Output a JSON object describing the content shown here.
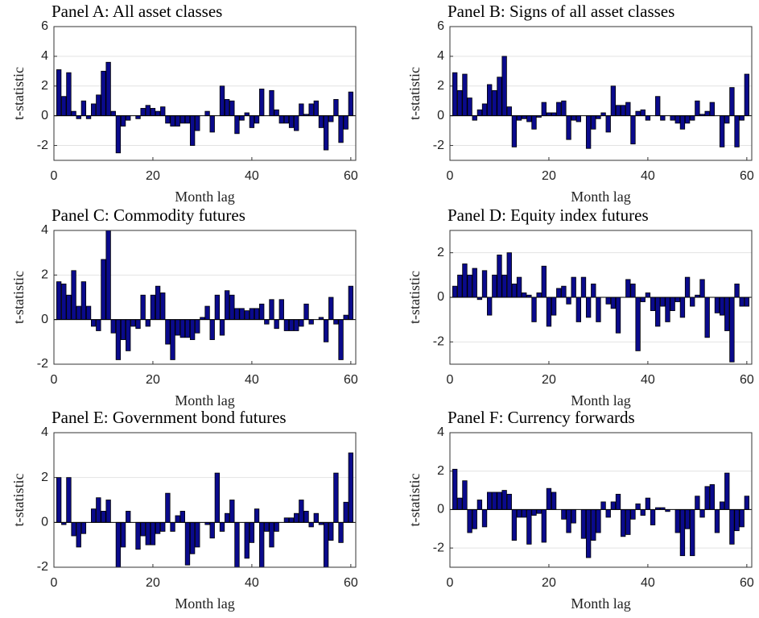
{
  "chart_data": [
    {
      "type": "bar",
      "title": "Panel A: All asset classes",
      "xlabel": "Month lag",
      "ylabel": "t-statistic",
      "color": "#0a0a8c",
      "grid": true,
      "x": [
        1,
        2,
        3,
        4,
        5,
        6,
        7,
        8,
        9,
        10,
        11,
        12,
        13,
        14,
        15,
        16,
        17,
        18,
        19,
        20,
        21,
        22,
        23,
        24,
        25,
        26,
        27,
        28,
        29,
        30,
        31,
        32,
        33,
        34,
        35,
        36,
        37,
        38,
        39,
        40,
        41,
        42,
        43,
        44,
        45,
        46,
        47,
        48,
        49,
        50,
        51,
        52,
        53,
        54,
        55,
        56,
        57,
        58,
        59,
        60
      ],
      "values": [
        3.1,
        1.3,
        2.9,
        0.3,
        -0.2,
        1.0,
        -0.2,
        0.8,
        1.4,
        3.0,
        3.6,
        0.3,
        -2.5,
        -0.7,
        -0.3,
        0.0,
        -0.2,
        0.5,
        0.7,
        0.5,
        0.3,
        0.6,
        -0.5,
        -0.7,
        -0.7,
        -0.5,
        -0.5,
        -2.0,
        -1.0,
        0.0,
        0.3,
        -1.1,
        0.0,
        2.0,
        1.1,
        1.0,
        -1.2,
        -0.3,
        0.2,
        -0.8,
        -0.5,
        1.8,
        0.0,
        1.7,
        0.4,
        -0.5,
        -0.5,
        -0.8,
        -1.0,
        0.8,
        0.1,
        0.8,
        1.0,
        -0.8,
        -2.3,
        -0.4,
        1.1,
        -1.8,
        -0.9,
        1.6
      ],
      "xlim": [
        0,
        61
      ],
      "xticks": [
        0,
        20,
        40,
        60
      ],
      "ylim": [
        -3,
        6
      ],
      "yticks": [
        -2,
        0,
        2,
        4,
        6
      ]
    },
    {
      "type": "bar",
      "title": "Panel B: Signs of all asset classes",
      "xlabel": "Month lag",
      "ylabel": "t-statistic",
      "color": "#0a0a8c",
      "grid": true,
      "x": [
        1,
        2,
        3,
        4,
        5,
        6,
        7,
        8,
        9,
        10,
        11,
        12,
        13,
        14,
        15,
        16,
        17,
        18,
        19,
        20,
        21,
        22,
        23,
        24,
        25,
        26,
        27,
        28,
        29,
        30,
        31,
        32,
        33,
        34,
        35,
        36,
        37,
        38,
        39,
        40,
        41,
        42,
        43,
        44,
        45,
        46,
        47,
        48,
        49,
        50,
        51,
        52,
        53,
        54,
        55,
        56,
        57,
        58,
        59,
        60
      ],
      "values": [
        2.9,
        1.7,
        2.8,
        1.2,
        -0.3,
        0.4,
        0.8,
        2.1,
        1.7,
        2.6,
        4.0,
        0.6,
        -2.1,
        -0.3,
        -0.2,
        -0.4,
        -0.9,
        -0.1,
        0.9,
        0.2,
        0.2,
        0.9,
        1.0,
        -1.6,
        -0.3,
        -0.4,
        0.0,
        -2.2,
        -0.9,
        -0.2,
        0.2,
        -1.1,
        2.0,
        0.7,
        0.7,
        0.9,
        -1.9,
        0.3,
        0.4,
        -0.3,
        0.0,
        1.3,
        -0.3,
        0.0,
        -0.3,
        -0.5,
        -0.9,
        -0.5,
        -0.3,
        1.0,
        0.1,
        0.3,
        0.9,
        0.0,
        -2.1,
        -0.5,
        1.9,
        -2.1,
        -0.3,
        2.8
      ],
      "xlim": [
        0,
        61
      ],
      "xticks": [
        0,
        20,
        40,
        60
      ],
      "ylim": [
        -3,
        6
      ],
      "yticks": [
        -2,
        0,
        2,
        4,
        6
      ]
    },
    {
      "type": "bar",
      "title": "Panel C: Commodity futures",
      "xlabel": "Month lag",
      "ylabel": "t-statistic",
      "color": "#0a0a8c",
      "grid": true,
      "x": [
        1,
        2,
        3,
        4,
        5,
        6,
        7,
        8,
        9,
        10,
        11,
        12,
        13,
        14,
        15,
        16,
        17,
        18,
        19,
        20,
        21,
        22,
        23,
        24,
        25,
        26,
        27,
        28,
        29,
        30,
        31,
        32,
        33,
        34,
        35,
        36,
        37,
        38,
        39,
        40,
        41,
        42,
        43,
        44,
        45,
        46,
        47,
        48,
        49,
        50,
        51,
        52,
        53,
        54,
        55,
        56,
        57,
        58,
        59,
        60
      ],
      "values": [
        1.7,
        1.6,
        1.1,
        2.2,
        0.6,
        1.7,
        0.6,
        -0.3,
        -0.5,
        2.7,
        4.0,
        -0.6,
        -1.8,
        -0.9,
        -1.4,
        -0.3,
        -0.4,
        1.1,
        -0.3,
        1.1,
        1.5,
        1.2,
        -1.1,
        -1.8,
        -0.7,
        -0.8,
        -0.8,
        -0.9,
        -0.6,
        0.1,
        0.6,
        -0.9,
        1.1,
        -0.7,
        1.3,
        1.1,
        0.5,
        0.5,
        0.4,
        0.5,
        0.5,
        0.7,
        -0.2,
        0.9,
        -0.4,
        0.9,
        -0.5,
        -0.5,
        -0.5,
        -0.3,
        0.7,
        -0.2,
        0.0,
        0.1,
        -1.0,
        1.0,
        -0.2,
        -1.8,
        0.2,
        1.5
      ],
      "xlim": [
        0,
        61
      ],
      "xticks": [
        0,
        20,
        40,
        60
      ],
      "ylim": [
        -2,
        4
      ],
      "yticks": [
        -2,
        0,
        2,
        4
      ]
    },
    {
      "type": "bar",
      "title": "Panel D: Equity index futures",
      "xlabel": "Month lag",
      "ylabel": "t-statistic",
      "color": "#0a0a8c",
      "grid": true,
      "x": [
        1,
        2,
        3,
        4,
        5,
        6,
        7,
        8,
        9,
        10,
        11,
        12,
        13,
        14,
        15,
        16,
        17,
        18,
        19,
        20,
        21,
        22,
        23,
        24,
        25,
        26,
        27,
        28,
        29,
        30,
        31,
        32,
        33,
        34,
        35,
        36,
        37,
        38,
        39,
        40,
        41,
        42,
        43,
        44,
        45,
        46,
        47,
        48,
        49,
        50,
        51,
        52,
        53,
        54,
        55,
        56,
        57,
        58,
        59,
        60
      ],
      "values": [
        0.5,
        1.0,
        1.5,
        1.0,
        1.3,
        -0.1,
        1.2,
        -0.8,
        1.0,
        1.9,
        1.0,
        2.0,
        0.6,
        0.9,
        0.2,
        0.1,
        -1.1,
        0.2,
        1.4,
        -1.3,
        -0.8,
        0.4,
        0.5,
        -0.3,
        0.9,
        -1.1,
        0.9,
        -0.9,
        0.6,
        -1.1,
        0.0,
        -0.3,
        -0.5,
        -1.6,
        0.0,
        0.8,
        0.6,
        -2.4,
        -0.2,
        0.2,
        -0.6,
        -1.3,
        -0.4,
        -1.1,
        -0.6,
        -0.2,
        -0.9,
        0.9,
        -0.4,
        0.1,
        0.8,
        -1.8,
        0.0,
        -0.7,
        -0.8,
        -1.5,
        -2.9,
        0.6,
        -0.4,
        -0.4
      ],
      "xlim": [
        0,
        61
      ],
      "xticks": [
        0,
        20,
        40,
        60
      ],
      "ylim": [
        -3,
        3
      ],
      "yticks": [
        -2,
        0,
        2
      ]
    },
    {
      "type": "bar",
      "title": "Panel E: Government bond futures",
      "xlabel": "Month lag",
      "ylabel": "t-statistic",
      "color": "#0a0a8c",
      "grid": true,
      "x": [
        1,
        2,
        3,
        4,
        5,
        6,
        7,
        8,
        9,
        10,
        11,
        12,
        13,
        14,
        15,
        16,
        17,
        18,
        19,
        20,
        21,
        22,
        23,
        24,
        25,
        26,
        27,
        28,
        29,
        30,
        31,
        32,
        33,
        34,
        35,
        36,
        37,
        38,
        39,
        40,
        41,
        42,
        43,
        44,
        45,
        46,
        47,
        48,
        49,
        50,
        51,
        52,
        53,
        54,
        55,
        56,
        57,
        58,
        59,
        60
      ],
      "values": [
        2.0,
        -0.1,
        2.0,
        -0.6,
        -1.1,
        -0.5,
        0.0,
        0.6,
        1.1,
        0.5,
        1.0,
        0.0,
        -2.0,
        -1.1,
        0.5,
        0.0,
        -1.2,
        -0.6,
        -1.0,
        -1.0,
        -0.5,
        -0.4,
        1.3,
        -0.4,
        0.3,
        0.5,
        -1.9,
        -1.4,
        -1.1,
        0.0,
        -0.1,
        -0.7,
        2.2,
        -0.4,
        0.4,
        1.0,
        -2.0,
        0.0,
        -1.6,
        -0.9,
        0.6,
        -2.0,
        -0.4,
        -1.1,
        -0.4,
        0.0,
        0.2,
        0.2,
        0.4,
        1.0,
        0.5,
        -0.2,
        0.4,
        -0.1,
        -2.0,
        -0.8,
        2.2,
        -0.9,
        0.9,
        3.1
      ],
      "xlim": [
        0,
        61
      ],
      "xticks": [
        0,
        20,
        40,
        60
      ],
      "ylim": [
        -2,
        4
      ],
      "yticks": [
        -2,
        0,
        2,
        4
      ]
    },
    {
      "type": "bar",
      "title": "Panel F: Currency forwards",
      "xlabel": "Month lag",
      "ylabel": "t-statistic",
      "color": "#0a0a8c",
      "grid": true,
      "x": [
        1,
        2,
        3,
        4,
        5,
        6,
        7,
        8,
        9,
        10,
        11,
        12,
        13,
        14,
        15,
        16,
        17,
        18,
        19,
        20,
        21,
        22,
        23,
        24,
        25,
        26,
        27,
        28,
        29,
        30,
        31,
        32,
        33,
        34,
        35,
        36,
        37,
        38,
        39,
        40,
        41,
        42,
        43,
        44,
        45,
        46,
        47,
        48,
        49,
        50,
        51,
        52,
        53,
        54,
        55,
        56,
        57,
        58,
        59,
        60
      ],
      "values": [
        2.1,
        0.6,
        1.5,
        -1.2,
        -1.0,
        0.5,
        -0.9,
        0.9,
        0.9,
        0.9,
        1.0,
        0.8,
        -1.6,
        -0.4,
        -0.4,
        -1.8,
        -0.3,
        -0.2,
        -1.7,
        1.1,
        0.9,
        0.0,
        -0.5,
        -1.2,
        -0.7,
        0.0,
        -1.5,
        -2.5,
        -1.6,
        -1.2,
        0.4,
        -0.4,
        0.4,
        0.8,
        -1.4,
        -1.3,
        -0.5,
        0.3,
        -0.3,
        0.6,
        -0.8,
        0.1,
        0.1,
        -0.1,
        0.0,
        -1.2,
        -2.4,
        -1.0,
        -2.4,
        0.7,
        -0.4,
        1.2,
        1.3,
        -1.2,
        0.4,
        1.9,
        -1.8,
        -1.1,
        -0.9,
        0.7
      ],
      "xlim": [
        0,
        61
      ],
      "xticks": [
        0,
        20,
        40,
        60
      ],
      "ylim": [
        -3,
        4
      ],
      "yticks": [
        -2,
        0,
        2,
        4
      ]
    }
  ]
}
